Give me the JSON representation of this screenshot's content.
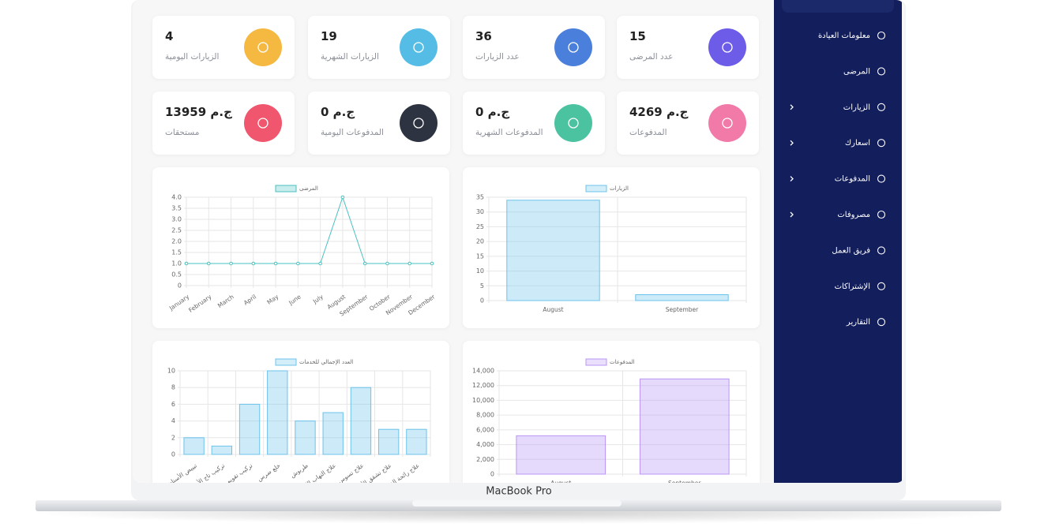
{
  "device_label": "MacBook Pro",
  "sidebar": {
    "items": [
      {
        "label": "معلومات العيادة",
        "submenu": false
      },
      {
        "label": "المرضى",
        "submenu": false
      },
      {
        "label": "الزيارات",
        "submenu": true
      },
      {
        "label": "اسعارك",
        "submenu": true
      },
      {
        "label": "المدفوعات",
        "submenu": true
      },
      {
        "label": "مصروفات",
        "submenu": true
      },
      {
        "label": "فريق العمل",
        "submenu": false
      },
      {
        "label": "الإشتراكات",
        "submenu": false
      },
      {
        "label": "التقارير",
        "submenu": false
      }
    ]
  },
  "stats": [
    {
      "value": 4,
      "label": "الزيارات اليومية",
      "color": "#f5b942"
    },
    {
      "value": 19,
      "label": "الزيارات الشهرية",
      "color": "#55bde5"
    },
    {
      "value": 36,
      "label": "عدد الزيارات",
      "color": "#4a7fdc"
    },
    {
      "value": 15,
      "label": "عدد المرضى",
      "color": "#6c5ce7"
    },
    {
      "value": 13959,
      "unit": "ج.م",
      "label": "مستحقات",
      "color": "#f0566d"
    },
    {
      "value": 0,
      "unit": "ج.م",
      "label": "المدفوعات اليومية",
      "color": "#2d3340"
    },
    {
      "value": 0,
      "unit": "ج.م",
      "label": "المدفوعات الشهرية",
      "color": "#4cc3a0"
    },
    {
      "value": 4269,
      "unit": "ج.م",
      "label": "المدفوعات",
      "color": "#f27aa8"
    }
  ],
  "chart_data": [
    {
      "type": "line",
      "categories": [
        "January",
        "February",
        "March",
        "April",
        "May",
        "June",
        "July",
        "August",
        "September",
        "October",
        "November",
        "December"
      ],
      "series": [
        {
          "name": "المرضى",
          "color": "#4bc0c0",
          "values": [
            1,
            1,
            1,
            1,
            1,
            1,
            1,
            4,
            1,
            1,
            1,
            1
          ]
        }
      ],
      "ylim": [
        0,
        4
      ],
      "yticks": [
        0,
        0.5,
        {
          "value": 1,
          "label": "1.0"
        },
        1.5,
        {
          "value": 2,
          "label": "2.0"
        },
        2.5,
        {
          "value": 3,
          "label": "3.0"
        },
        3.5,
        {
          "value": 4,
          "label": "4.0"
        }
      ],
      "grid": true
    },
    {
      "type": "bar",
      "categories": [
        "August",
        "September"
      ],
      "series": [
        {
          "name": "الزيارات",
          "color": "#6cc3ec",
          "values": [
            34,
            2
          ]
        }
      ],
      "ylim": [
        0,
        35
      ],
      "yticks": [
        0,
        5,
        10,
        15,
        20,
        25,
        30,
        35
      ],
      "grid": true
    },
    {
      "type": "bar",
      "categories": [
        "تبييض الأسنان",
        "تركيب تاج الأسنان",
        "تركيب تقويم",
        "خلع ضرس",
        "طربوش",
        "علاج التهاب اللثة",
        "علاج تسوس",
        "علاج تشقق الأسنان",
        "علاج رائحة الفم الكريهة"
      ],
      "series": [
        {
          "name": "العدد الإجمالي للخدمات",
          "color": "#6cc3ec",
          "values": [
            2,
            1,
            6,
            10,
            4,
            5,
            8,
            3,
            3
          ]
        }
      ],
      "ylim": [
        0,
        10
      ],
      "yticks": [
        0,
        2,
        4,
        6,
        8,
        10
      ],
      "grid": true
    },
    {
      "type": "bar",
      "categories": [
        "August",
        "September"
      ],
      "series": [
        {
          "name": "المدفوعات",
          "color": "#b894f5",
          "values": [
            5200,
            12900
          ]
        }
      ],
      "ylim": [
        0,
        14000
      ],
      "yticks": [
        0,
        {
          "value": 2000,
          "label": "2,000"
        },
        {
          "value": 4000,
          "label": "4,000"
        },
        {
          "value": 6000,
          "label": "6,000"
        },
        {
          "value": 8000,
          "label": "8,000"
        },
        {
          "value": 10000,
          "label": "10,000"
        },
        {
          "value": 12000,
          "label": "12,000"
        },
        {
          "value": 14000,
          "label": "14,000"
        }
      ],
      "grid": true
    }
  ]
}
